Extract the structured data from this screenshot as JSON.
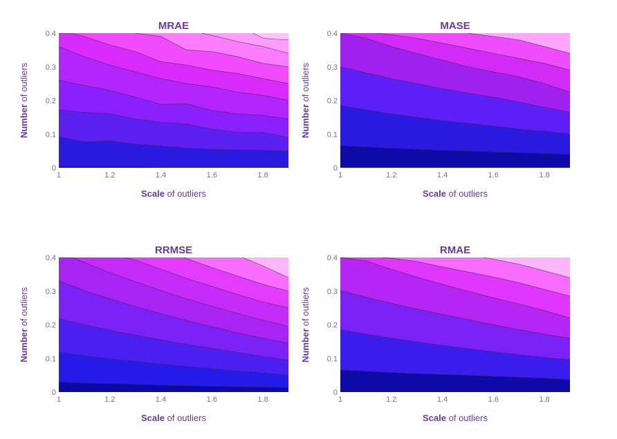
{
  "chart_data": [
    {
      "type": "contour",
      "title": "MRAE",
      "xlabel_bold": "Scale",
      "xlabel_rest": " of outliers",
      "ylabel_bold": "Number",
      "ylabel_rest": " of outliers",
      "x_ticks": [
        "1",
        "1.2",
        "1.4",
        "1.6",
        "1.8"
      ],
      "y_ticks": [
        "0",
        "0.1",
        "0.2",
        "0.3",
        "0.4"
      ],
      "xlim": [
        1,
        1.9
      ],
      "ylim": [
        0,
        0.4
      ],
      "contour_lines": [
        {
          "x": [
            1,
            1.1,
            1.2,
            1.3,
            1.4,
            1.5,
            1.6,
            1.7,
            1.8,
            1.9
          ],
          "y": [
            0.003,
            0.003,
            0.003,
            0.003,
            0.002,
            0.002,
            0.002,
            0.002,
            0.002,
            0.002
          ]
        },
        {
          "x": [
            1,
            1.1,
            1.2,
            1.3,
            1.4,
            1.5,
            1.6,
            1.7,
            1.8,
            1.9
          ],
          "y": [
            0.092,
            0.077,
            0.08,
            0.07,
            0.065,
            0.058,
            0.055,
            0.053,
            0.052,
            0.05
          ]
        },
        {
          "x": [
            1,
            1.1,
            1.2,
            1.3,
            1.4,
            1.5,
            1.6,
            1.7,
            1.8,
            1.9
          ],
          "y": [
            0.172,
            0.165,
            0.16,
            0.145,
            0.135,
            0.13,
            0.115,
            0.105,
            0.105,
            0.09
          ]
        },
        {
          "x": [
            1,
            1.1,
            1.2,
            1.3,
            1.4,
            1.5,
            1.6,
            1.7,
            1.8,
            1.9
          ],
          "y": [
            0.26,
            0.245,
            0.23,
            0.21,
            0.188,
            0.19,
            0.17,
            0.16,
            0.155,
            0.145
          ]
        },
        {
          "x": [
            1,
            1.1,
            1.2,
            1.3,
            1.4,
            1.5,
            1.6,
            1.7,
            1.8,
            1.9
          ],
          "y": [
            0.36,
            0.33,
            0.305,
            0.285,
            0.265,
            0.25,
            0.24,
            0.225,
            0.215,
            0.2
          ]
        },
        {
          "x": [
            1,
            1.05,
            1.1,
            1.2,
            1.3,
            1.4,
            1.5,
            1.6,
            1.7,
            1.8,
            1.9
          ],
          "y": [
            0.4,
            0.4,
            0.39,
            0.365,
            0.345,
            0.315,
            0.305,
            0.29,
            0.28,
            0.265,
            0.25
          ]
        },
        {
          "x": [
            1.3,
            1.4,
            1.45,
            1.5,
            1.6,
            1.7,
            1.8,
            1.9
          ],
          "y": [
            0.4,
            0.39,
            0.37,
            0.35,
            0.345,
            0.33,
            0.31,
            0.3
          ]
        },
        {
          "x": [
            1.56,
            1.62,
            1.7,
            1.8,
            1.9
          ],
          "y": [
            0.4,
            0.39,
            0.375,
            0.36,
            0.34
          ]
        },
        {
          "x": [
            1.76,
            1.8,
            1.85,
            1.9
          ],
          "y": [
            0.4,
            0.385,
            0.382,
            0.38
          ]
        }
      ],
      "band_colors": [
        "#0d0887",
        "#2a1ae0",
        "#5b1ff0",
        "#8a1fff",
        "#b225ff",
        "#d92bff",
        "#f24bff",
        "#fb7cff",
        "#ff9dfd",
        "#ffc0fc"
      ]
    },
    {
      "type": "contour",
      "title": "MASE",
      "xlabel_bold": "Scale",
      "xlabel_rest": " of outliers",
      "ylabel_bold": "Number",
      "ylabel_rest": " of outliers",
      "x_ticks": [
        "1",
        "1.2",
        "1.4",
        "1.6",
        "1.8"
      ],
      "y_ticks": [
        "0",
        "0.1",
        "0.2",
        "0.3",
        "0.4"
      ],
      "xlim": [
        1,
        1.9
      ],
      "ylim": [
        0,
        0.4
      ],
      "contour_lines": [
        {
          "x": [
            1,
            1.1,
            1.2,
            1.3,
            1.4,
            1.5,
            1.6,
            1.7,
            1.8,
            1.9
          ],
          "y": [
            0.066,
            0.062,
            0.058,
            0.055,
            0.052,
            0.05,
            0.047,
            0.045,
            0.042,
            0.04
          ]
        },
        {
          "x": [
            1,
            1.1,
            1.2,
            1.3,
            1.4,
            1.5,
            1.6,
            1.7,
            1.8,
            1.9
          ],
          "y": [
            0.185,
            0.172,
            0.16,
            0.15,
            0.14,
            0.132,
            0.124,
            0.115,
            0.108,
            0.1
          ]
        },
        {
          "x": [
            1,
            1.1,
            1.2,
            1.3,
            1.4,
            1.5,
            1.6,
            1.7,
            1.8,
            1.9
          ],
          "y": [
            0.3,
            0.282,
            0.265,
            0.25,
            0.235,
            0.222,
            0.21,
            0.195,
            0.18,
            0.165
          ]
        },
        {
          "x": [
            1,
            1.1,
            1.2,
            1.3,
            1.4,
            1.5,
            1.6,
            1.7,
            1.8,
            1.9
          ],
          "y": [
            0.4,
            0.385,
            0.36,
            0.34,
            0.32,
            0.3,
            0.285,
            0.27,
            0.25,
            0.225
          ]
        },
        {
          "x": [
            1.14,
            1.2,
            1.3,
            1.4,
            1.5,
            1.6,
            1.7,
            1.8,
            1.9
          ],
          "y": [
            0.4,
            0.395,
            0.385,
            0.37,
            0.355,
            0.34,
            0.325,
            0.31,
            0.29
          ]
        },
        {
          "x": [
            1.5,
            1.6,
            1.7,
            1.8,
            1.9
          ],
          "y": [
            0.4,
            0.39,
            0.38,
            0.36,
            0.34
          ]
        }
      ],
      "band_colors": [
        "#0d0aa8",
        "#2a1ae0",
        "#5c1ff5",
        "#a020f0",
        "#d22bf8",
        "#f04cff",
        "#ffa5fc"
      ]
    },
    {
      "type": "contour",
      "title": "RRMSE",
      "xlabel_bold": "Scale",
      "xlabel_rest": " of outliers",
      "ylabel_bold": "Number",
      "ylabel_rest": " of outliers",
      "x_ticks": [
        "1",
        "1.2",
        "1.4",
        "1.6",
        "1.8"
      ],
      "y_ticks": [
        "0",
        "0.1",
        "0.2",
        "0.3",
        "0.4"
      ],
      "xlim": [
        1,
        1.9
      ],
      "ylim": [
        0,
        0.4
      ],
      "contour_lines": [
        {
          "x": [
            1,
            1.1,
            1.2,
            1.3,
            1.4,
            1.5,
            1.6,
            1.7,
            1.8,
            1.9
          ],
          "y": [
            0.03,
            0.027,
            0.025,
            0.023,
            0.021,
            0.019,
            0.017,
            0.016,
            0.015,
            0.013
          ]
        },
        {
          "x": [
            1,
            1.1,
            1.2,
            1.3,
            1.4,
            1.5,
            1.6,
            1.7,
            1.8,
            1.9
          ],
          "y": [
            0.118,
            0.108,
            0.099,
            0.091,
            0.083,
            0.076,
            0.069,
            0.063,
            0.057,
            0.05
          ]
        },
        {
          "x": [
            1,
            1.1,
            1.2,
            1.3,
            1.4,
            1.5,
            1.6,
            1.7,
            1.8,
            1.9
          ],
          "y": [
            0.218,
            0.2,
            0.184,
            0.169,
            0.155,
            0.142,
            0.13,
            0.118,
            0.106,
            0.095
          ]
        },
        {
          "x": [
            1,
            1.1,
            1.2,
            1.3,
            1.4,
            1.5,
            1.6,
            1.7,
            1.8,
            1.9
          ],
          "y": [
            0.33,
            0.302,
            0.277,
            0.254,
            0.233,
            0.213,
            0.194,
            0.176,
            0.16,
            0.145
          ]
        },
        {
          "x": [
            1,
            1.05,
            1.1,
            1.2,
            1.3,
            1.4,
            1.5,
            1.6,
            1.7,
            1.8,
            1.9
          ],
          "y": [
            0.4,
            0.4,
            0.385,
            0.355,
            0.328,
            0.302,
            0.277,
            0.255,
            0.234,
            0.214,
            0.195
          ]
        },
        {
          "x": [
            1.26,
            1.3,
            1.4,
            1.5,
            1.6,
            1.7,
            1.8,
            1.9
          ],
          "y": [
            0.4,
            0.392,
            0.365,
            0.338,
            0.314,
            0.29,
            0.268,
            0.25
          ]
        },
        {
          "x": [
            1.49,
            1.5,
            1.6,
            1.7,
            1.8,
            1.9
          ],
          "y": [
            0.4,
            0.397,
            0.37,
            0.345,
            0.32,
            0.3
          ]
        },
        {
          "x": [
            1.72,
            1.8,
            1.9
          ],
          "y": [
            0.4,
            0.375,
            0.34
          ]
        }
      ],
      "band_colors": [
        "#0a0aa6",
        "#251be8",
        "#4a1ff0",
        "#7a22f5",
        "#a724f5",
        "#c52cfa",
        "#e33cff",
        "#f86cff",
        "#ffb5fc"
      ]
    },
    {
      "type": "contour",
      "title": "RMAE",
      "xlabel_bold": "Scale",
      "xlabel_rest": " of outliers",
      "ylabel_bold": "Number",
      "ylabel_rest": " of outliers",
      "x_ticks": [
        "1",
        "1.2",
        "1.4",
        "1.6",
        "1.8"
      ],
      "y_ticks": [
        "0",
        "0.1",
        "0.2",
        "0.3",
        "0.4"
      ],
      "xlim": [
        1,
        1.9
      ],
      "ylim": [
        0,
        0.4
      ],
      "contour_lines": [
        {
          "x": [
            1,
            1.1,
            1.2,
            1.3,
            1.4,
            1.5,
            1.6,
            1.7,
            1.8,
            1.9
          ],
          "y": [
            0.066,
            0.062,
            0.058,
            0.055,
            0.052,
            0.05,
            0.047,
            0.044,
            0.041,
            0.037
          ]
        },
        {
          "x": [
            1,
            1.1,
            1.2,
            1.3,
            1.4,
            1.5,
            1.6,
            1.7,
            1.8,
            1.9
          ],
          "y": [
            0.185,
            0.172,
            0.16,
            0.149,
            0.139,
            0.129,
            0.12,
            0.111,
            0.103,
            0.096
          ]
        },
        {
          "x": [
            1,
            1.1,
            1.2,
            1.3,
            1.4,
            1.5,
            1.6,
            1.7,
            1.8,
            1.9
          ],
          "y": [
            0.302,
            0.282,
            0.264,
            0.247,
            0.231,
            0.216,
            0.2,
            0.186,
            0.172,
            0.16
          ]
        },
        {
          "x": [
            1,
            1.1,
            1.2,
            1.3,
            1.4,
            1.5,
            1.6,
            1.7,
            1.8,
            1.9
          ],
          "y": [
            0.4,
            0.39,
            0.365,
            0.342,
            0.32,
            0.3,
            0.28,
            0.262,
            0.242,
            0.22
          ]
        },
        {
          "x": [
            1.16,
            1.2,
            1.3,
            1.4,
            1.5,
            1.6,
            1.7,
            1.8,
            1.9
          ],
          "y": [
            0.4,
            0.398,
            0.388,
            0.372,
            0.357,
            0.342,
            0.325,
            0.305,
            0.285
          ]
        },
        {
          "x": [
            1.56,
            1.6,
            1.7,
            1.8,
            1.9
          ],
          "y": [
            0.4,
            0.395,
            0.38,
            0.36,
            0.34
          ]
        }
      ],
      "band_colors": [
        "#0d0aa8",
        "#3a1cec",
        "#7a22f5",
        "#b526f5",
        "#e036ff",
        "#f86cff",
        "#ffb5fc"
      ]
    }
  ]
}
